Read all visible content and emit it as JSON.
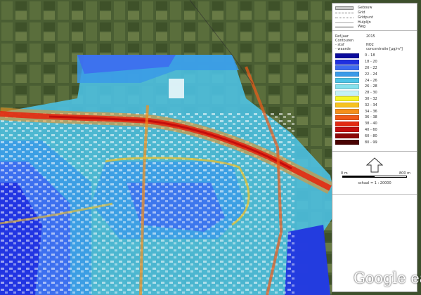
{
  "legend": {
    "base_items": [
      {
        "label": "Gebouw",
        "style": "building"
      },
      {
        "label": "Grid",
        "style": "dashed"
      },
      {
        "label": "Gridpunt",
        "style": "dotted"
      },
      {
        "label": "Hulplijn",
        "style": "thin"
      },
      {
        "label": "Weg",
        "style": "road"
      }
    ],
    "meta": [
      {
        "key": "Ref.jaar",
        "value": "2015"
      },
      {
        "key": "Contouren",
        "value": ""
      },
      {
        "key": "- stof",
        "value": "NO2"
      },
      {
        "key": "- waarde",
        "value": "concentratie [µg/m³]"
      }
    ],
    "scale": [
      {
        "label": "0 - 18",
        "color": "#0a0a9c"
      },
      {
        "label": "18 - 20",
        "color": "#1f2fe0"
      },
      {
        "label": "20 - 22",
        "color": "#3d6af0"
      },
      {
        "label": "22 - 24",
        "color": "#3a9ae8"
      },
      {
        "label": "24 - 26",
        "color": "#4cc3e6"
      },
      {
        "label": "26 - 28",
        "color": "#86e1ec"
      },
      {
        "label": "28 - 30",
        "color": "#c4f2f5"
      },
      {
        "label": "30 - 32",
        "color": "#f6f626"
      },
      {
        "label": "32 - 34",
        "color": "#f7c21f"
      },
      {
        "label": "34 - 36",
        "color": "#f58f19"
      },
      {
        "label": "36 - 38",
        "color": "#f05a17"
      },
      {
        "label": "38 - 40",
        "color": "#e22a12"
      },
      {
        "label": "40 - 60",
        "color": "#c40d0d"
      },
      {
        "label": "60 - 80",
        "color": "#8c0707"
      },
      {
        "label": "80 - 99",
        "color": "#4a0303"
      }
    ],
    "scalebar": {
      "left": "0 m",
      "right": "800 m",
      "caption": "schaal = 1 : 20000"
    }
  },
  "logo_text": "Google ea"
}
